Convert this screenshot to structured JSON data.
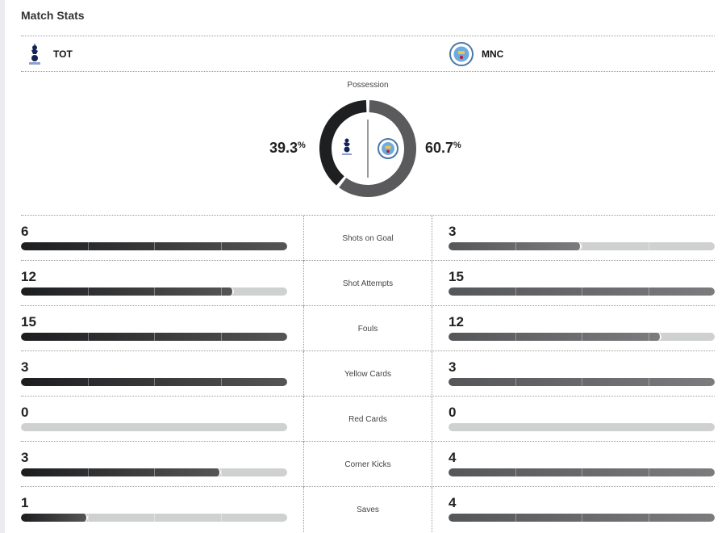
{
  "header": {
    "title": "Match Stats"
  },
  "teams": {
    "home": {
      "abbr": "TOT",
      "color": "#1e1f21"
    },
    "away": {
      "abbr": "MNC",
      "color": "#5a5a5c"
    }
  },
  "possession": {
    "label": "Possession",
    "home": 39.3,
    "away": 60.7,
    "home_text": "39.3",
    "away_text": "60.7",
    "unit": "%"
  },
  "stats": [
    {
      "label": "Shots on Goal",
      "home": 6,
      "away": 3
    },
    {
      "label": "Shot Attempts",
      "home": 12,
      "away": 15
    },
    {
      "label": "Fouls",
      "home": 15,
      "away": 12
    },
    {
      "label": "Yellow Cards",
      "home": 3,
      "away": 3
    },
    {
      "label": "Red Cards",
      "home": 0,
      "away": 0
    },
    {
      "label": "Corner Kicks",
      "home": 3,
      "away": 4
    },
    {
      "label": "Saves",
      "home": 1,
      "away": 4
    }
  ]
}
